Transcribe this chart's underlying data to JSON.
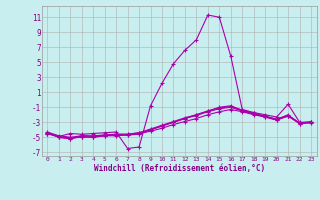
{
  "xlabel": "Windchill (Refroidissement éolien,°C)",
  "bg_color": "#c8eef0",
  "grid_color": "#b0b0b0",
  "line_color": "#aa00aa",
  "xlim": [
    -0.5,
    23.5
  ],
  "ylim": [
    -7.5,
    12.5
  ],
  "xticks": [
    0,
    1,
    2,
    3,
    4,
    5,
    6,
    7,
    8,
    9,
    10,
    11,
    12,
    13,
    14,
    15,
    16,
    17,
    18,
    19,
    20,
    21,
    22,
    23
  ],
  "yticks": [
    -7,
    -5,
    -3,
    -1,
    1,
    3,
    5,
    7,
    9,
    11
  ],
  "series": [
    [
      -4.5,
      -4.9,
      -4.5,
      -4.6,
      -4.5,
      -4.4,
      -4.3,
      -6.5,
      -6.3,
      -0.8,
      2.2,
      4.8,
      6.6,
      8.0,
      11.3,
      11.0,
      5.8,
      -1.3,
      -1.7,
      -2.0,
      -2.3,
      -0.6,
      -3.0,
      -3.0
    ],
    [
      -4.5,
      -5.0,
      -5.2,
      -4.9,
      -5.0,
      -4.8,
      -4.8,
      -4.7,
      -4.6,
      -4.0,
      -3.5,
      -3.0,
      -2.5,
      -2.0,
      -1.5,
      -1.0,
      -0.8,
      -1.4,
      -1.8,
      -2.2,
      -2.6,
      -2.0,
      -3.2,
      -3.0
    ],
    [
      -4.4,
      -4.9,
      -5.1,
      -5.0,
      -5.0,
      -4.8,
      -4.7,
      -4.7,
      -4.5,
      -4.2,
      -3.8,
      -3.3,
      -2.9,
      -2.5,
      -2.0,
      -1.6,
      -1.3,
      -1.6,
      -2.0,
      -2.3,
      -2.7,
      -2.1,
      -3.1,
      -3.1
    ],
    [
      -4.4,
      -5.0,
      -5.2,
      -4.8,
      -4.9,
      -4.7,
      -4.6,
      -4.6,
      -4.4,
      -4.0,
      -3.5,
      -3.0,
      -2.5,
      -2.1,
      -1.6,
      -1.2,
      -1.0,
      -1.5,
      -1.9,
      -2.3,
      -2.7,
      -2.2,
      -3.2,
      -3.0
    ],
    [
      -4.3,
      -4.8,
      -5.0,
      -4.8,
      -4.8,
      -4.7,
      -4.6,
      -4.6,
      -4.4,
      -3.9,
      -3.4,
      -2.9,
      -2.4,
      -2.0,
      -1.5,
      -1.1,
      -0.9,
      -1.4,
      -1.8,
      -2.2,
      -2.6,
      -2.1,
      -3.1,
      -2.9
    ]
  ]
}
